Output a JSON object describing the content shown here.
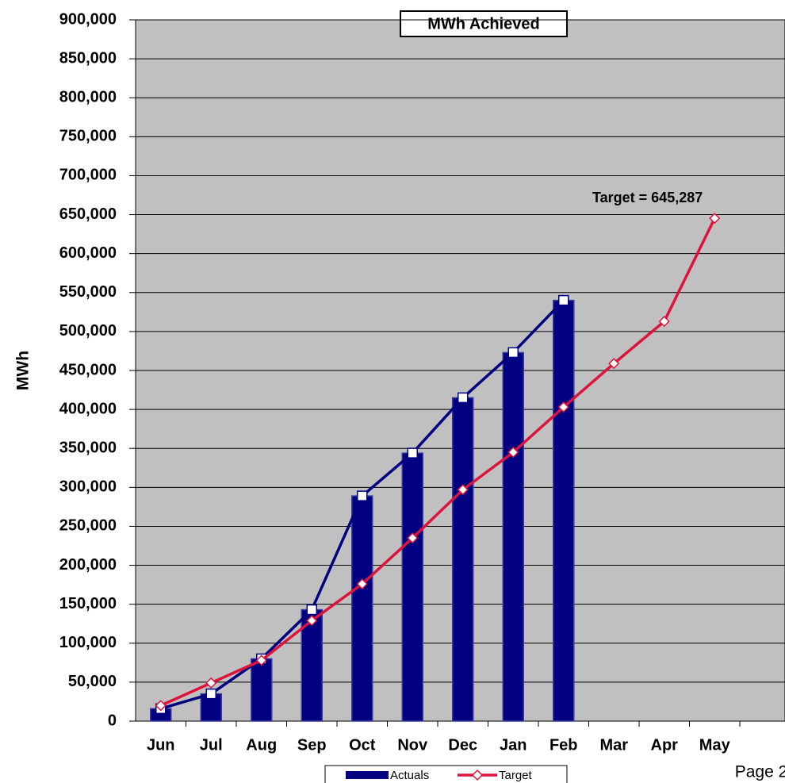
{
  "chart_data": {
    "type": "bar_line",
    "title": "MWh Achieved",
    "y_label": "MWh",
    "annotation": "Target = 645,287",
    "categories": [
      "Jun",
      "Jul",
      "Aug",
      "Sep",
      "Oct",
      "Nov",
      "Dec",
      "Jan",
      "Feb",
      "Mar",
      "Apr",
      "May"
    ],
    "series": [
      {
        "name": "Actuals",
        "color": "#000080",
        "values": [
          16000,
          35000,
          80000,
          143000,
          289000,
          344000,
          415000,
          473000,
          540000,
          null,
          null,
          null
        ]
      },
      {
        "name": "Target",
        "color": "#dc143c",
        "values": [
          20000,
          49000,
          78000,
          129000,
          176000,
          235000,
          297000,
          345000,
          403000,
          459000,
          513000,
          645287
        ]
      }
    ],
    "ylim": [
      0,
      900000
    ],
    "yticks": [
      0,
      {
        "value": 50000,
        "label": "50,000"
      },
      {
        "value": 100000,
        "label": "100,000"
      },
      {
        "value": 150000,
        "label": "150,000"
      },
      {
        "value": 200000,
        "label": "200,000"
      },
      {
        "value": 250000,
        "label": "250,000"
      },
      {
        "value": 300000,
        "label": "300,000"
      },
      {
        "value": 350000,
        "label": "350,000"
      },
      {
        "value": 400000,
        "label": "400,000"
      },
      {
        "value": 450000,
        "label": "450,000"
      },
      {
        "value": 500000,
        "label": "500,000"
      },
      {
        "value": 550000,
        "label": "550,000"
      },
      {
        "value": 600000,
        "label": "600,000"
      },
      {
        "value": 650000,
        "label": "650,000"
      },
      {
        "value": 700000,
        "label": "700,000"
      },
      {
        "value": 750000,
        "label": "750,000"
      },
      {
        "value": 800000,
        "label": "800,000"
      },
      {
        "value": 850000,
        "label": "850,000"
      },
      {
        "value": 900000,
        "label": "900,000"
      }
    ],
    "grid": true
  },
  "page_footer": "Page 2"
}
